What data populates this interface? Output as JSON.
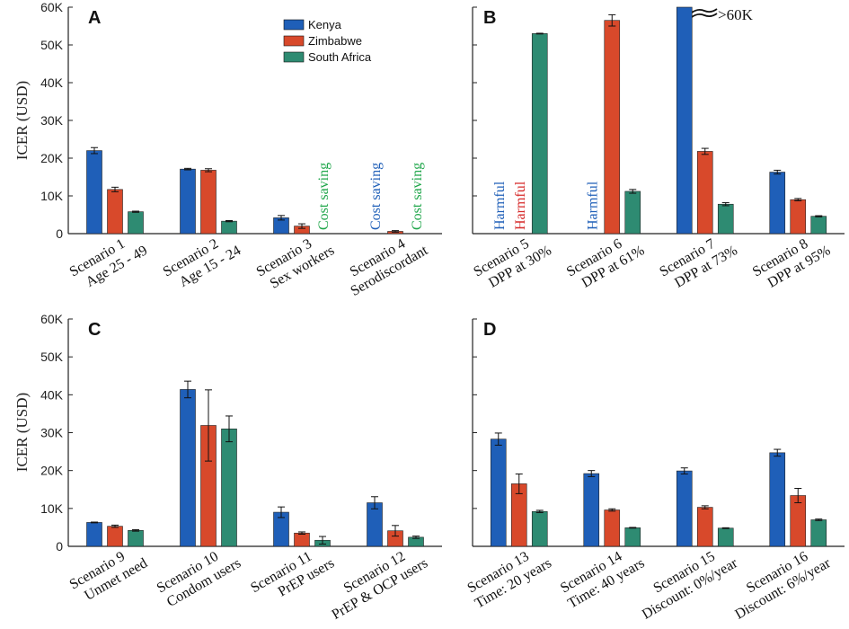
{
  "colors": {
    "kenya": "#1f5fb8",
    "zimbabwe": "#d8492b",
    "southafrica": "#2e8b72",
    "text_blue": "#1f5fb8",
    "text_red": "#d62a2a",
    "text_green": "#1fa64a"
  },
  "legend": [
    "Kenya",
    "Zimbabwe",
    "South Africa"
  ],
  "chart_data": [
    {
      "panel": "A",
      "type": "bar",
      "ylabel": "ICER (USD)",
      "ylim": [
        0,
        60000
      ],
      "yticks": [
        "0",
        "10K",
        "20K",
        "30K",
        "40K",
        "50K",
        "60K"
      ],
      "categories": [
        [
          "Scenario 1",
          "Age 25 - 49"
        ],
        [
          "Scenario 2",
          "Age 15 - 24"
        ],
        [
          "Scenario 3",
          "Sex workers"
        ],
        [
          "Scenario 4",
          "Serodiscordant"
        ]
      ],
      "series": [
        {
          "name": "Kenya",
          "values": [
            22000,
            17100,
            4200,
            null
          ],
          "errors": [
            800,
            200,
            600,
            null
          ]
        },
        {
          "name": "Zimbabwe",
          "values": [
            11700,
            16800,
            2000,
            600
          ],
          "errors": [
            600,
            400,
            600,
            200
          ]
        },
        {
          "name": "South Africa",
          "values": [
            5800,
            3300,
            null,
            null
          ],
          "errors": [
            150,
            150,
            null,
            null
          ]
        }
      ],
      "annotations": [
        {
          "text": "Cost saving",
          "series": 2,
          "category": 2
        },
        {
          "text": "Cost saving",
          "series": 0,
          "category": 3
        },
        {
          "text": "Cost saving",
          "series": 2,
          "category": 3
        }
      ]
    },
    {
      "panel": "B",
      "type": "bar",
      "ylim": [
        0,
        60000
      ],
      "categories": [
        [
          "Scenario 5",
          "DPP at 30%"
        ],
        [
          "Scenario 6",
          "DPP at 61%"
        ],
        [
          "Scenario 7",
          "DPP at 73%"
        ],
        [
          "Scenario 8",
          "DPP at 95%"
        ]
      ],
      "series": [
        {
          "name": "Kenya",
          "values": [
            null,
            null,
            60000,
            16300
          ],
          "errors": [
            null,
            null,
            null,
            500
          ]
        },
        {
          "name": "Zimbabwe",
          "values": [
            null,
            56500,
            21800,
            9000
          ],
          "errors": [
            null,
            1500,
            800,
            300
          ]
        },
        {
          "name": "South Africa",
          "values": [
            53000,
            11200,
            7800,
            4600
          ],
          "errors": [
            100,
            500,
            400,
            150
          ]
        }
      ],
      "annotations": [
        {
          "text": "Harmful",
          "series": 0,
          "category": 0
        },
        {
          "text": "Harmful",
          "series": 1,
          "category": 0
        },
        {
          "text": "Harmful",
          "series": 0,
          "category": 1
        }
      ],
      "break_label": ">60K"
    },
    {
      "panel": "C",
      "type": "bar",
      "ylabel": "ICER (USD)",
      "ylim": [
        0,
        60000
      ],
      "yticks": [
        "0",
        "10K",
        "20K",
        "30K",
        "40K",
        "50K",
        "60K"
      ],
      "categories": [
        [
          "Scenario 9",
          "Unmet need"
        ],
        [
          "Scenario 10",
          "Condom users"
        ],
        [
          "Scenario 11",
          "PrEP users"
        ],
        [
          "Scenario 12",
          "PrEP & OCP users"
        ]
      ],
      "series": [
        {
          "name": "Kenya",
          "values": [
            6300,
            41400,
            9000,
            11500
          ],
          "errors": [
            100,
            2200,
            1400,
            1600
          ]
        },
        {
          "name": "Zimbabwe",
          "values": [
            5300,
            31900,
            3500,
            4100
          ],
          "errors": [
            300,
            9400,
            300,
            1400
          ]
        },
        {
          "name": "South Africa",
          "values": [
            4200,
            31000,
            1600,
            2400
          ],
          "errors": [
            200,
            3400,
            1000,
            300
          ]
        }
      ]
    },
    {
      "panel": "D",
      "type": "bar",
      "ylim": [
        0,
        60000
      ],
      "categories": [
        [
          "Scenario 13",
          "Time: 20 years"
        ],
        [
          "Scenario 14",
          "Time: 40 years"
        ],
        [
          "Scenario 15",
          "Discount: 0%/year"
        ],
        [
          "Scenario 16",
          "Discount: 6%/year"
        ]
      ],
      "series": [
        {
          "name": "Kenya",
          "values": [
            28300,
            19200,
            19900,
            24700
          ],
          "errors": [
            1600,
            800,
            800,
            900
          ]
        },
        {
          "name": "Zimbabwe",
          "values": [
            16500,
            9600,
            10300,
            13400
          ],
          "errors": [
            2600,
            300,
            400,
            1900
          ]
        },
        {
          "name": "South Africa",
          "values": [
            9200,
            4900,
            4800,
            7000
          ],
          "errors": [
            300,
            100,
            100,
            200
          ]
        }
      ]
    }
  ]
}
